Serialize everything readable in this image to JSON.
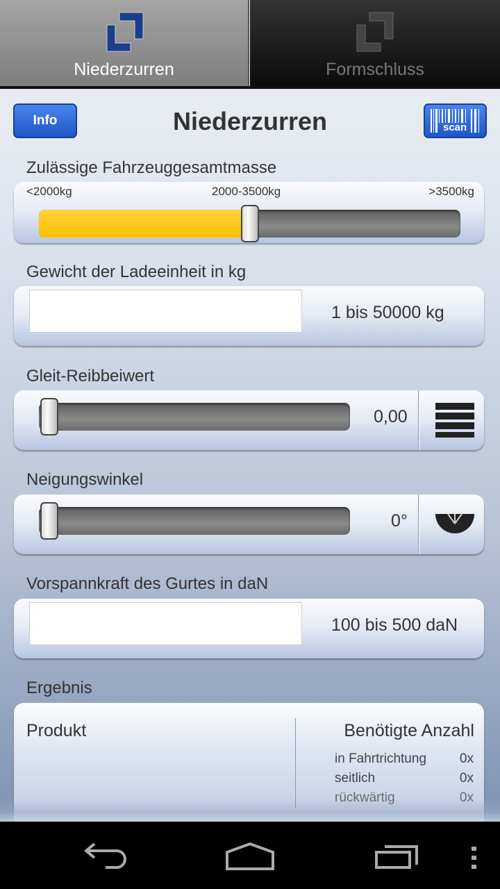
{
  "tabs": [
    {
      "label": "Niederzurren",
      "active": true
    },
    {
      "label": "Formschluss",
      "active": false
    }
  ],
  "header": {
    "title": "Niederzurren",
    "info_label": "Info",
    "scan_label": "scan"
  },
  "fahrzeug": {
    "label": "Zulässige Fahrzeuggesamtmasse",
    "ticks": [
      "<2000kg",
      "2000-3500kg",
      ">3500kg"
    ],
    "selected": "2000-3500kg",
    "slider_fraction": 0.5,
    "fill_color": "#ffc000"
  },
  "gewicht": {
    "label": "Gewicht der Ladeeinheit in kg",
    "value": "",
    "range": "1 bis 50000 kg"
  },
  "gleit": {
    "label": "Gleit-Reibbeiwert",
    "value": "0,00",
    "slider_fraction": 0,
    "icon": "list-icon"
  },
  "neigung": {
    "label": "Neigungswinkel",
    "value": "0°",
    "slider_fraction": 0,
    "icon": "protractor-icon"
  },
  "vorspann": {
    "label": "Vorspannkraft des Gurtes in daN",
    "value": "",
    "range": "100 bis 500 daN"
  },
  "ergebnis": {
    "label": "Ergebnis",
    "produkt": "Produkt",
    "anzahl_header": "Benötigte Anzahl",
    "rows": [
      {
        "label": "in Fahrtrichtung",
        "value": "0x"
      },
      {
        "label": "seitlich",
        "value": "0x"
      },
      {
        "label": "rückwärtig",
        "value": "0x"
      }
    ]
  },
  "navbar": {
    "icons": [
      "back-icon",
      "home-icon",
      "recent-apps-icon",
      "overflow-menu-icon"
    ]
  }
}
